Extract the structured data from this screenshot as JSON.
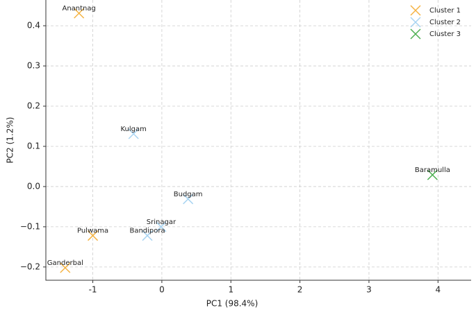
{
  "chart_data": {
    "type": "scatter",
    "x_label": "PC1 (98.4%)",
    "y_label": "PC2 (1.2%)",
    "xlim": [
      -1.68,
      4.48
    ],
    "ylim": [
      -0.233,
      0.464
    ],
    "xticks": [
      -1,
      0,
      1,
      2,
      3,
      4
    ],
    "yticks": [
      {
        "value": -0.2,
        "label": "−0.2"
      },
      {
        "value": -0.1,
        "label": "−0.1"
      },
      {
        "value": 0,
        "label": "0.0"
      },
      0.1,
      0.2,
      0.3,
      0.4
    ],
    "grid": true,
    "legend": "upper right",
    "series": [
      {
        "name": "Cluster 1",
        "color": "#f5b342",
        "x": [
          -1.2,
          -1.0,
          -1.4
        ],
        "values": [
          0.431,
          -0.122,
          -0.202
        ],
        "labels": [
          "Anantnag",
          "Pulwama",
          "Ganderbal"
        ]
      },
      {
        "name": "Cluster 2",
        "color": "#a8d4f2",
        "x": [
          -0.41,
          0.38,
          -0.01,
          -0.21
        ],
        "values": [
          0.131,
          -0.031,
          -0.1,
          -0.122
        ],
        "labels": [
          "Kulgam",
          "Budgam",
          "Srinagar",
          "Bandipora"
        ]
      },
      {
        "name": "Cluster 3",
        "color": "#4caf50",
        "x": [
          3.92
        ],
        "values": [
          0.029
        ],
        "labels": [
          "Baramulla"
        ]
      }
    ]
  }
}
